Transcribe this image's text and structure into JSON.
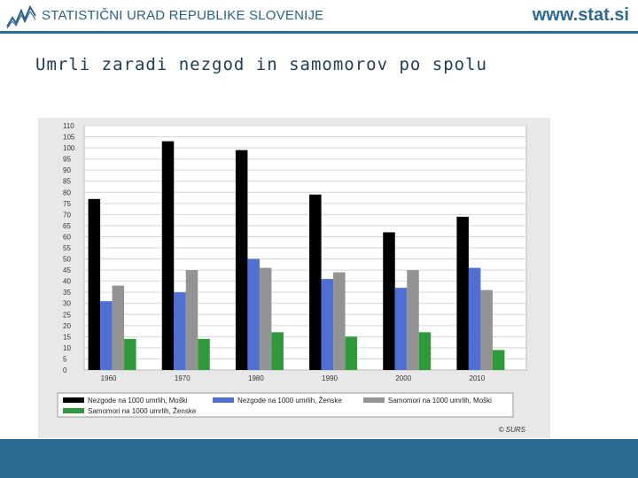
{
  "header": {
    "org_name": "STATISTIČNI URAD REPUBLIKE SLOVENIJE",
    "site_url": "www.stat.si",
    "logo_icon": "surs-logo-icon"
  },
  "slide": {
    "title": "Umrli zaradi nezgod in samomorov po spolu"
  },
  "chart_data": {
    "type": "bar",
    "title": "",
    "xlabel": "",
    "ylabel": "",
    "ylim": [
      0,
      110
    ],
    "y_ticks": [
      0,
      5,
      10,
      15,
      20,
      25,
      30,
      35,
      40,
      45,
      50,
      55,
      60,
      65,
      70,
      75,
      80,
      85,
      90,
      95,
      100,
      105,
      110
    ],
    "grid": true,
    "legend_position": "bottom",
    "categories": [
      "1960",
      "1970",
      "1980",
      "1990",
      "2000",
      "2010"
    ],
    "series": [
      {
        "name": "Nezgode na 1000 umrlih, Moški",
        "color": "#000000",
        "values": [
          77,
          103,
          99,
          79,
          62,
          69
        ]
      },
      {
        "name": "Nezgode na 1000 umrlih, Ženske",
        "color": "#4f6fd4",
        "values": [
          31,
          35,
          50,
          41,
          37,
          46
        ]
      },
      {
        "name": "Samomori na 1000 umrlih, Moški",
        "color": "#939393",
        "values": [
          38,
          45,
          46,
          44,
          45,
          36
        ]
      },
      {
        "name": "Samomori na 1000 umrlih, Ženske",
        "color": "#2e9a3a",
        "values": [
          14,
          14,
          17,
          15,
          17,
          9
        ]
      }
    ],
    "source_note": "© SURS"
  }
}
